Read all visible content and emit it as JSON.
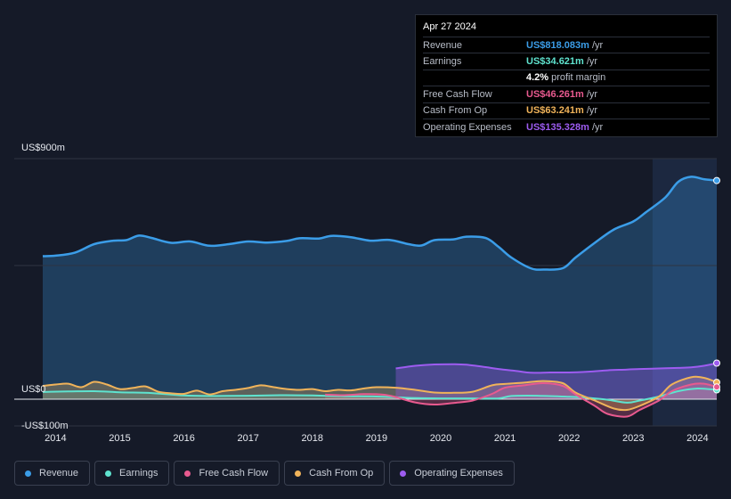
{
  "tooltip": {
    "date": "Apr 27 2024",
    "rows": [
      {
        "label": "Revenue",
        "value": "US$818.083m",
        "unit": "/yr",
        "color": "#3b9de8"
      },
      {
        "label": "Earnings",
        "value": "US$34.621m",
        "unit": "/yr",
        "color": "#5fe3cf"
      },
      {
        "label": "",
        "value": "4.2%",
        "unit": "profit margin",
        "color": "#ffffff"
      },
      {
        "label": "Free Cash Flow",
        "value": "US$46.261m",
        "unit": "/yr",
        "color": "#e85a8f"
      },
      {
        "label": "Cash From Op",
        "value": "US$63.241m",
        "unit": "/yr",
        "color": "#f0b35a"
      },
      {
        "label": "Operating Expenses",
        "value": "US$135.328m",
        "unit": "/yr",
        "color": "#9d5cf0"
      }
    ]
  },
  "legend": [
    {
      "label": "Revenue",
      "color": "#3b9de8"
    },
    {
      "label": "Earnings",
      "color": "#5fe3cf"
    },
    {
      "label": "Free Cash Flow",
      "color": "#e85a8f"
    },
    {
      "label": "Cash From Op",
      "color": "#f0b35a"
    },
    {
      "label": "Operating Expenses",
      "color": "#9d5cf0"
    }
  ],
  "chart_data": {
    "type": "area",
    "title": "",
    "ylim": [
      -100,
      900
    ],
    "y_tick_labels": [
      {
        "value": 900,
        "label": "US$900m"
      },
      {
        "value": 0,
        "label": "US$0"
      },
      {
        "value": -100,
        "label": "-US$100m"
      }
    ],
    "x_ticks": [
      2014,
      2015,
      2016,
      2017,
      2018,
      2019,
      2020,
      2021,
      2022,
      2023,
      2024
    ],
    "x_range": [
      2013.8,
      2024.3
    ],
    "highlight_from": 2023.3,
    "series": [
      {
        "name": "Revenue",
        "color": "#3b9de8",
        "points": [
          [
            2013.8,
            535
          ],
          [
            2014.0,
            537
          ],
          [
            2014.3,
            548
          ],
          [
            2014.6,
            580
          ],
          [
            2014.9,
            593
          ],
          [
            2015.1,
            595
          ],
          [
            2015.3,
            612
          ],
          [
            2015.5,
            603
          ],
          [
            2015.8,
            585
          ],
          [
            2016.1,
            590
          ],
          [
            2016.4,
            574
          ],
          [
            2016.7,
            580
          ],
          [
            2017.0,
            590
          ],
          [
            2017.3,
            586
          ],
          [
            2017.6,
            592
          ],
          [
            2017.8,
            602
          ],
          [
            2018.1,
            601
          ],
          [
            2018.3,
            611
          ],
          [
            2018.6,
            606
          ],
          [
            2018.9,
            593
          ],
          [
            2019.2,
            596
          ],
          [
            2019.5,
            580
          ],
          [
            2019.7,
            575
          ],
          [
            2019.9,
            595
          ],
          [
            2020.2,
            598
          ],
          [
            2020.4,
            608
          ],
          [
            2020.7,
            603
          ],
          [
            2020.9,
            570
          ],
          [
            2021.1,
            530
          ],
          [
            2021.4,
            490
          ],
          [
            2021.6,
            485
          ],
          [
            2021.9,
            490
          ],
          [
            2022.1,
            530
          ],
          [
            2022.4,
            585
          ],
          [
            2022.7,
            635
          ],
          [
            2023.0,
            665
          ],
          [
            2023.2,
            700
          ],
          [
            2023.5,
            755
          ],
          [
            2023.7,
            813
          ],
          [
            2023.9,
            832
          ],
          [
            2024.1,
            823
          ],
          [
            2024.3,
            818
          ]
        ]
      },
      {
        "name": "Earnings",
        "color": "#5fe3cf",
        "points": [
          [
            2013.8,
            27
          ],
          [
            2014.2,
            29
          ],
          [
            2014.6,
            30
          ],
          [
            2015.0,
            26
          ],
          [
            2015.5,
            23
          ],
          [
            2016.0,
            14
          ],
          [
            2016.5,
            12
          ],
          [
            2017.0,
            13
          ],
          [
            2017.5,
            15
          ],
          [
            2018.0,
            14
          ],
          [
            2018.5,
            11
          ],
          [
            2019.0,
            10
          ],
          [
            2019.5,
            5
          ],
          [
            2020.0,
            3
          ],
          [
            2020.5,
            3
          ],
          [
            2020.9,
            3
          ],
          [
            2021.1,
            12
          ],
          [
            2021.5,
            13
          ],
          [
            2022.0,
            9
          ],
          [
            2022.3,
            5
          ],
          [
            2022.6,
            -2
          ],
          [
            2022.9,
            -13
          ],
          [
            2023.1,
            -5
          ],
          [
            2023.4,
            10
          ],
          [
            2023.7,
            30
          ],
          [
            2024.0,
            40
          ],
          [
            2024.3,
            35
          ]
        ]
      },
      {
        "name": "Free Cash Flow",
        "color": "#e85a8f",
        "points": [
          [
            2018.2,
            17
          ],
          [
            2018.5,
            15
          ],
          [
            2018.8,
            19
          ],
          [
            2019.1,
            17
          ],
          [
            2019.3,
            8
          ],
          [
            2019.6,
            -12
          ],
          [
            2019.9,
            -20
          ],
          [
            2020.2,
            -14
          ],
          [
            2020.5,
            -5
          ],
          [
            2020.8,
            20
          ],
          [
            2021.0,
            43
          ],
          [
            2021.3,
            52
          ],
          [
            2021.6,
            60
          ],
          [
            2021.9,
            50
          ],
          [
            2022.1,
            18
          ],
          [
            2022.4,
            -25
          ],
          [
            2022.6,
            -55
          ],
          [
            2022.9,
            -65
          ],
          [
            2023.1,
            -40
          ],
          [
            2023.4,
            -5
          ],
          [
            2023.6,
            30
          ],
          [
            2023.9,
            55
          ],
          [
            2024.1,
            58
          ],
          [
            2024.3,
            46
          ]
        ]
      },
      {
        "name": "Cash From Op",
        "color": "#f0b35a",
        "points": [
          [
            2013.8,
            50
          ],
          [
            2014.0,
            55
          ],
          [
            2014.2,
            58
          ],
          [
            2014.4,
            45
          ],
          [
            2014.6,
            65
          ],
          [
            2014.8,
            55
          ],
          [
            2015.0,
            38
          ],
          [
            2015.2,
            42
          ],
          [
            2015.4,
            48
          ],
          [
            2015.6,
            28
          ],
          [
            2015.8,
            22
          ],
          [
            2016.0,
            20
          ],
          [
            2016.2,
            32
          ],
          [
            2016.4,
            18
          ],
          [
            2016.6,
            30
          ],
          [
            2016.8,
            35
          ],
          [
            2017.0,
            42
          ],
          [
            2017.2,
            52
          ],
          [
            2017.4,
            45
          ],
          [
            2017.6,
            38
          ],
          [
            2017.8,
            35
          ],
          [
            2018.0,
            38
          ],
          [
            2018.2,
            30
          ],
          [
            2018.4,
            35
          ],
          [
            2018.6,
            33
          ],
          [
            2018.8,
            40
          ],
          [
            2019.0,
            45
          ],
          [
            2019.3,
            43
          ],
          [
            2019.6,
            35
          ],
          [
            2019.9,
            25
          ],
          [
            2020.2,
            24
          ],
          [
            2020.5,
            28
          ],
          [
            2020.8,
            52
          ],
          [
            2021.0,
            57
          ],
          [
            2021.3,
            62
          ],
          [
            2021.6,
            68
          ],
          [
            2021.9,
            60
          ],
          [
            2022.1,
            25
          ],
          [
            2022.4,
            -5
          ],
          [
            2022.7,
            -35
          ],
          [
            2022.9,
            -40
          ],
          [
            2023.1,
            -25
          ],
          [
            2023.4,
            10
          ],
          [
            2023.6,
            55
          ],
          [
            2023.9,
            82
          ],
          [
            2024.1,
            80
          ],
          [
            2024.3,
            63
          ]
        ]
      },
      {
        "name": "Operating Expenses",
        "color": "#9d5cf0",
        "points": [
          [
            2019.3,
            115
          ],
          [
            2019.6,
            125
          ],
          [
            2019.9,
            130
          ],
          [
            2020.2,
            131
          ],
          [
            2020.4,
            129
          ],
          [
            2020.7,
            120
          ],
          [
            2020.9,
            113
          ],
          [
            2021.2,
            105
          ],
          [
            2021.4,
            99
          ],
          [
            2021.7,
            100
          ],
          [
            2022.0,
            100
          ],
          [
            2022.3,
            103
          ],
          [
            2022.6,
            108
          ],
          [
            2022.9,
            111
          ],
          [
            2023.1,
            113
          ],
          [
            2023.4,
            115
          ],
          [
            2023.7,
            117
          ],
          [
            2023.9,
            119
          ],
          [
            2024.1,
            125
          ],
          [
            2024.3,
            135
          ]
        ]
      }
    ]
  }
}
